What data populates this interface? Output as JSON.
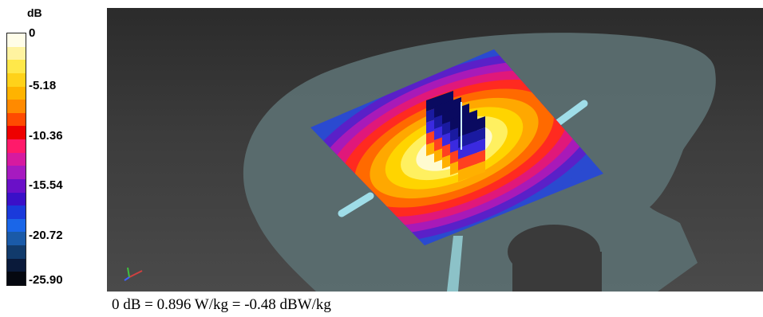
{
  "legend": {
    "unit": "dB",
    "ticks": [
      "0",
      "-5.18",
      "-10.36",
      "-15.54",
      "-20.72",
      "-25.90"
    ],
    "colors": [
      "#fffde8",
      "#fff3a0",
      "#ffe84a",
      "#ffd21a",
      "#ffb300",
      "#ff8a00",
      "#ff4b00",
      "#ee0000",
      "#ff1a6a",
      "#d61aa0",
      "#a61ac0",
      "#6a10c8",
      "#3a10c8",
      "#1a3adb",
      "#1a66e8",
      "#1a5aa8",
      "#113a6b",
      "#0a1a3a",
      "#050810"
    ]
  },
  "caption": "0 dB = 0.896 W/kg = -0.48 dBW/kg",
  "scene": {
    "background": "#3a3a3a",
    "phantom_color": "#5b6e70",
    "plate_colors": [
      "#2a4ad0",
      "#5a20c8",
      "#a81ab8",
      "#e0187a",
      "#ff2a20",
      "#ff6a00",
      "#ffa800",
      "#ffd400",
      "#fff060",
      "#fffbd0"
    ],
    "bar_color": "#9fdde8",
    "cube_colors": [
      "#0a0a60",
      "#1a1aa0",
      "#3a2ae0",
      "#ff4020",
      "#ffb000"
    ]
  }
}
